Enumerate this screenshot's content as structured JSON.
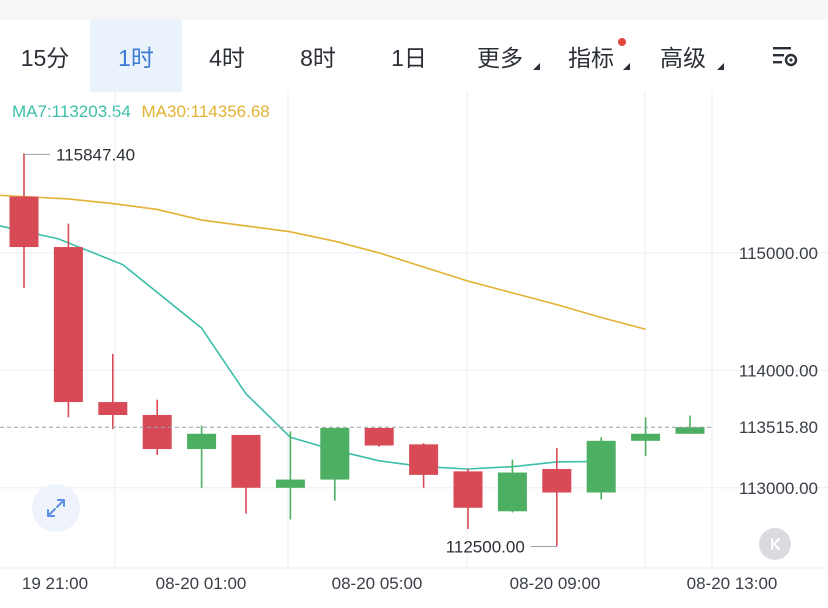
{
  "tabs": [
    {
      "label": "15分",
      "active": false,
      "dropdown": false,
      "dot": false
    },
    {
      "label": "1时",
      "active": true,
      "dropdown": false,
      "dot": false
    },
    {
      "label": "4时",
      "active": false,
      "dropdown": false,
      "dot": false
    },
    {
      "label": "8时",
      "active": false,
      "dropdown": false,
      "dot": false
    },
    {
      "label": "1日",
      "active": false,
      "dropdown": false,
      "dot": false
    },
    {
      "label": "更多",
      "active": false,
      "dropdown": true,
      "dot": false
    },
    {
      "label": "指标",
      "active": false,
      "dropdown": true,
      "dot": true
    },
    {
      "label": "高级",
      "active": false,
      "dropdown": true,
      "dot": false
    }
  ],
  "indicators": {
    "ma7_label": "MA7:113203.54",
    "ma30_label": "MA30:114356.68"
  },
  "icons": {
    "settings": "chart-settings-icon",
    "expand": "expand-icon",
    "scroll_latest": "double-chevron-left-icon"
  },
  "colors": {
    "up": "#4caf62",
    "down": "#d84a56",
    "ma7": "#3cbfa8",
    "ma30": "#e3b232",
    "active_tab": "#3a7bd5",
    "grid": "#eceef2"
  },
  "chart_data": {
    "type": "candlestick",
    "interval": "1h",
    "ylim": [
      112300,
      116200
    ],
    "y_ticks": [
      {
        "value": 115000,
        "label": "115000.00"
      },
      {
        "value": 114000,
        "label": "114000.00"
      },
      {
        "value": 113000,
        "label": "113000.00"
      }
    ],
    "x_ticks": [
      "19 21:00",
      "08-20 01:00",
      "08-20 05:00",
      "08-20 09:00",
      "08-20 13:00"
    ],
    "current_price": {
      "value": 113515.8,
      "label": "113515.80"
    },
    "high_marker": {
      "value": 115847.4,
      "label": "115847.40"
    },
    "low_marker": {
      "value": 112500.0,
      "label": "112500.00"
    },
    "candles": [
      {
        "open": 115480,
        "high": 115847.4,
        "low": 114700,
        "close": 115050
      },
      {
        "open": 115050,
        "high": 115250,
        "low": 113600,
        "close": 113730
      },
      {
        "open": 113730,
        "high": 114140,
        "low": 113500,
        "close": 113620
      },
      {
        "open": 113620,
        "high": 113750,
        "low": 113280,
        "close": 113330
      },
      {
        "open": 113330,
        "high": 113530,
        "low": 113000,
        "close": 113460
      },
      {
        "open": 113450,
        "high": 113450,
        "low": 112780,
        "close": 113000
      },
      {
        "open": 113000,
        "high": 113480,
        "low": 112730,
        "close": 113070
      },
      {
        "open": 113070,
        "high": 113510,
        "low": 112890,
        "close": 113510
      },
      {
        "open": 113510,
        "high": 113510,
        "low": 113350,
        "close": 113360
      },
      {
        "open": 113370,
        "high": 113380,
        "low": 113000,
        "close": 113110
      },
      {
        "open": 113140,
        "high": 113160,
        "low": 112650,
        "close": 112830
      },
      {
        "open": 112800,
        "high": 113240,
        "low": 112790,
        "close": 113130
      },
      {
        "open": 113160,
        "high": 113340,
        "low": 112500,
        "close": 112960
      },
      {
        "open": 112960,
        "high": 113430,
        "low": 112900,
        "close": 113400
      },
      {
        "open": 113400,
        "high": 113600,
        "low": 113270,
        "close": 113460
      },
      {
        "open": 113460,
        "high": 113615,
        "low": 113460,
        "close": 113515.8
      }
    ],
    "ma7": [
      115230,
      115180,
      114850,
      114360,
      113800,
      113430,
      113320,
      113230,
      113180,
      113160,
      113180,
      113220,
      113225
    ],
    "ma30": [
      115490,
      115460,
      115420,
      115370,
      115280,
      115230,
      115180,
      115100,
      115000,
      114880,
      114760,
      114660,
      114560,
      114450,
      114350
    ]
  }
}
